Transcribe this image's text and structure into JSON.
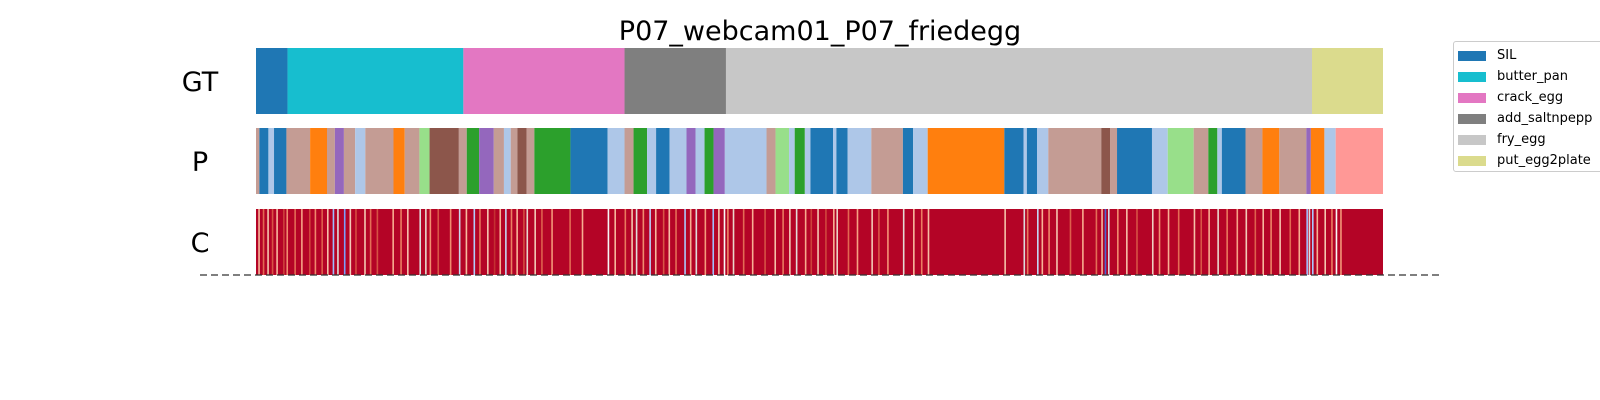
{
  "chart_data": {
    "type": "segmentation_bars",
    "title": "P07_webcam01_P07_friedegg",
    "rows": [
      {
        "label": "GT",
        "segments": [
          {
            "start": 0.0,
            "end": 0.028,
            "color": "#1f77b4"
          },
          {
            "start": 0.028,
            "end": 0.184,
            "color": "#17becf"
          },
          {
            "start": 0.184,
            "end": 0.327,
            "color": "#e377c2"
          },
          {
            "start": 0.327,
            "end": 0.417,
            "color": "#7f7f7f"
          },
          {
            "start": 0.417,
            "end": 0.937,
            "color": "#c7c7c7"
          },
          {
            "start": 0.937,
            "end": 1.0,
            "color": "#dbdb8d"
          }
        ]
      },
      {
        "label": "P",
        "segments": [
          {
            "start": 0.0,
            "end": 0.003,
            "color": "#c49c94"
          },
          {
            "start": 0.003,
            "end": 0.011,
            "color": "#1f77b4"
          },
          {
            "start": 0.011,
            "end": 0.016,
            "color": "#aec7e8"
          },
          {
            "start": 0.016,
            "end": 0.027,
            "color": "#1f77b4"
          },
          {
            "start": 0.027,
            "end": 0.048,
            "color": "#c49c94"
          },
          {
            "start": 0.048,
            "end": 0.063,
            "color": "#ff7f0e"
          },
          {
            "start": 0.063,
            "end": 0.07,
            "color": "#c49c94"
          },
          {
            "start": 0.07,
            "end": 0.078,
            "color": "#9467bd"
          },
          {
            "start": 0.078,
            "end": 0.088,
            "color": "#c49c94"
          },
          {
            "start": 0.088,
            "end": 0.097,
            "color": "#aec7e8"
          },
          {
            "start": 0.097,
            "end": 0.122,
            "color": "#c49c94"
          },
          {
            "start": 0.122,
            "end": 0.132,
            "color": "#ff7f0e"
          },
          {
            "start": 0.132,
            "end": 0.145,
            "color": "#c49c94"
          },
          {
            "start": 0.145,
            "end": 0.154,
            "color": "#98df8a"
          },
          {
            "start": 0.154,
            "end": 0.18,
            "color": "#8c564b"
          },
          {
            "start": 0.18,
            "end": 0.187,
            "color": "#c49c94"
          },
          {
            "start": 0.187,
            "end": 0.198,
            "color": "#2ca02c"
          },
          {
            "start": 0.198,
            "end": 0.211,
            "color": "#9467bd"
          },
          {
            "start": 0.211,
            "end": 0.22,
            "color": "#c49c94"
          },
          {
            "start": 0.22,
            "end": 0.226,
            "color": "#aec7e8"
          },
          {
            "start": 0.226,
            "end": 0.232,
            "color": "#c49c94"
          },
          {
            "start": 0.232,
            "end": 0.24,
            "color": "#8c564b"
          },
          {
            "start": 0.24,
            "end": 0.247,
            "color": "#c49c94"
          },
          {
            "start": 0.247,
            "end": 0.279,
            "color": "#2ca02c"
          },
          {
            "start": 0.279,
            "end": 0.312,
            "color": "#1f77b4"
          },
          {
            "start": 0.312,
            "end": 0.327,
            "color": "#aec7e8"
          },
          {
            "start": 0.327,
            "end": 0.335,
            "color": "#c49c94"
          },
          {
            "start": 0.335,
            "end": 0.347,
            "color": "#2ca02c"
          },
          {
            "start": 0.347,
            "end": 0.355,
            "color": "#aec7e8"
          },
          {
            "start": 0.355,
            "end": 0.367,
            "color": "#1f77b4"
          },
          {
            "start": 0.367,
            "end": 0.382,
            "color": "#aec7e8"
          },
          {
            "start": 0.382,
            "end": 0.39,
            "color": "#9467bd"
          },
          {
            "start": 0.39,
            "end": 0.398,
            "color": "#aec7e8"
          },
          {
            "start": 0.398,
            "end": 0.406,
            "color": "#2ca02c"
          },
          {
            "start": 0.406,
            "end": 0.416,
            "color": "#9467bd"
          },
          {
            "start": 0.416,
            "end": 0.453,
            "color": "#aec7e8"
          },
          {
            "start": 0.453,
            "end": 0.461,
            "color": "#c49c94"
          },
          {
            "start": 0.461,
            "end": 0.473,
            "color": "#98df8a"
          },
          {
            "start": 0.473,
            "end": 0.478,
            "color": "#aec7e8"
          },
          {
            "start": 0.478,
            "end": 0.487,
            "color": "#2ca02c"
          },
          {
            "start": 0.487,
            "end": 0.492,
            "color": "#aec7e8"
          },
          {
            "start": 0.492,
            "end": 0.512,
            "color": "#1f77b4"
          },
          {
            "start": 0.512,
            "end": 0.515,
            "color": "#aec7e8"
          },
          {
            "start": 0.515,
            "end": 0.525,
            "color": "#1f77b4"
          },
          {
            "start": 0.525,
            "end": 0.546,
            "color": "#aec7e8"
          },
          {
            "start": 0.546,
            "end": 0.574,
            "color": "#c49c94"
          },
          {
            "start": 0.574,
            "end": 0.583,
            "color": "#1f77b4"
          },
          {
            "start": 0.583,
            "end": 0.596,
            "color": "#aec7e8"
          },
          {
            "start": 0.596,
            "end": 0.664,
            "color": "#ff7f0e"
          },
          {
            "start": 0.664,
            "end": 0.681,
            "color": "#1f77b4"
          },
          {
            "start": 0.681,
            "end": 0.684,
            "color": "#aec7e8"
          },
          {
            "start": 0.684,
            "end": 0.693,
            "color": "#1f77b4"
          },
          {
            "start": 0.693,
            "end": 0.703,
            "color": "#aec7e8"
          },
          {
            "start": 0.703,
            "end": 0.75,
            "color": "#c49c94"
          },
          {
            "start": 0.75,
            "end": 0.758,
            "color": "#8c564b"
          },
          {
            "start": 0.758,
            "end": 0.764,
            "color": "#c49c94"
          },
          {
            "start": 0.764,
            "end": 0.795,
            "color": "#1f77b4"
          },
          {
            "start": 0.795,
            "end": 0.809,
            "color": "#aec7e8"
          },
          {
            "start": 0.809,
            "end": 0.832,
            "color": "#98df8a"
          },
          {
            "start": 0.832,
            "end": 0.845,
            "color": "#c49c94"
          },
          {
            "start": 0.845,
            "end": 0.853,
            "color": "#2ca02c"
          },
          {
            "start": 0.853,
            "end": 0.857,
            "color": "#aec7e8"
          },
          {
            "start": 0.857,
            "end": 0.878,
            "color": "#1f77b4"
          },
          {
            "start": 0.878,
            "end": 0.893,
            "color": "#c49c94"
          },
          {
            "start": 0.893,
            "end": 0.908,
            "color": "#ff7f0e"
          },
          {
            "start": 0.908,
            "end": 0.932,
            "color": "#c49c94"
          },
          {
            "start": 0.932,
            "end": 0.936,
            "color": "#9467bd"
          },
          {
            "start": 0.936,
            "end": 0.948,
            "color": "#ff7f0e"
          },
          {
            "start": 0.948,
            "end": 0.958,
            "color": "#aec7e8"
          },
          {
            "start": 0.958,
            "end": 1.0,
            "color": "#ff9896"
          }
        ]
      },
      {
        "label": "C",
        "base_color": "#b40426",
        "stripes": [
          {
            "pos": 0.002,
            "color": "#f7b89c"
          },
          {
            "pos": 0.006,
            "color": "#e26952"
          },
          {
            "pos": 0.01,
            "color": "#f4c5ad"
          },
          {
            "pos": 0.014,
            "color": "#d75445"
          },
          {
            "pos": 0.018,
            "color": "#f7b89c"
          },
          {
            "pos": 0.024,
            "color": "#cd423b"
          },
          {
            "pos": 0.027,
            "color": "#f18d6f"
          },
          {
            "pos": 0.034,
            "color": "#e36c55"
          },
          {
            "pos": 0.04,
            "color": "#f6a385"
          },
          {
            "pos": 0.047,
            "color": "#d0473d"
          },
          {
            "pos": 0.052,
            "color": "#ef886b"
          },
          {
            "pos": 0.058,
            "color": "#dd5f4b"
          },
          {
            "pos": 0.063,
            "color": "#f5c0a7"
          },
          {
            "pos": 0.068,
            "color": "#9dbdff"
          },
          {
            "pos": 0.072,
            "color": "#e0dbd8"
          },
          {
            "pos": 0.078,
            "color": "#7b9ff9"
          },
          {
            "pos": 0.083,
            "color": "#f2cbb7"
          },
          {
            "pos": 0.088,
            "color": "#d44e41"
          },
          {
            "pos": 0.096,
            "color": "#f3c7b1"
          },
          {
            "pos": 0.101,
            "color": "#e46e56"
          },
          {
            "pos": 0.107,
            "color": "#d65244"
          },
          {
            "pos": 0.121,
            "color": "#f7ac8e"
          },
          {
            "pos": 0.128,
            "color": "#eb7d62"
          },
          {
            "pos": 0.134,
            "color": "#f5c2aa"
          },
          {
            "pos": 0.145,
            "color": "#dcdddd"
          },
          {
            "pos": 0.15,
            "color": "#e9d5cb"
          },
          {
            "pos": 0.154,
            "color": "#f29072"
          },
          {
            "pos": 0.161,
            "color": "#d85646"
          },
          {
            "pos": 0.172,
            "color": "#f08b6e"
          },
          {
            "pos": 0.18,
            "color": "#cad8ef"
          },
          {
            "pos": 0.186,
            "color": "#f7ba9f"
          },
          {
            "pos": 0.193,
            "color": "#b2ccfb"
          },
          {
            "pos": 0.198,
            "color": "#e7745b"
          },
          {
            "pos": 0.205,
            "color": "#f4c6af"
          },
          {
            "pos": 0.211,
            "color": "#c43032"
          },
          {
            "pos": 0.216,
            "color": "#f7b194"
          },
          {
            "pos": 0.221,
            "color": "#c5d6f2"
          },
          {
            "pos": 0.226,
            "color": "#ec7f63"
          },
          {
            "pos": 0.231,
            "color": "#f7b497"
          },
          {
            "pos": 0.237,
            "color": "#d24b40"
          },
          {
            "pos": 0.24,
            "color": "#e8d6cc"
          },
          {
            "pos": 0.247,
            "color": "#f2cab5"
          },
          {
            "pos": 0.253,
            "color": "#de614d"
          },
          {
            "pos": 0.262,
            "color": "#f39778"
          },
          {
            "pos": 0.278,
            "color": "#e26952"
          },
          {
            "pos": 0.289,
            "color": "#f7af91"
          },
          {
            "pos": 0.312,
            "color": "#f5f5f5"
          },
          {
            "pos": 0.318,
            "color": "#f7b89c"
          },
          {
            "pos": 0.327,
            "color": "#e9785d"
          },
          {
            "pos": 0.333,
            "color": "#f4c5ad"
          },
          {
            "pos": 0.337,
            "color": "#dfdbd9"
          },
          {
            "pos": 0.343,
            "color": "#f08b6e"
          },
          {
            "pos": 0.349,
            "color": "#b9d0f9"
          },
          {
            "pos": 0.354,
            "color": "#f7b89c"
          },
          {
            "pos": 0.361,
            "color": "#d85646"
          },
          {
            "pos": 0.366,
            "color": "#f6bfa6"
          },
          {
            "pos": 0.372,
            "color": "#e46e56"
          },
          {
            "pos": 0.38,
            "color": "#aac7fd"
          },
          {
            "pos": 0.385,
            "color": "#f7ad90"
          },
          {
            "pos": 0.39,
            "color": "#dedcdb"
          },
          {
            "pos": 0.398,
            "color": "#f49a7b"
          },
          {
            "pos": 0.405,
            "color": "#9fbfff"
          },
          {
            "pos": 0.41,
            "color": "#f5c4ac"
          },
          {
            "pos": 0.415,
            "color": "#f7f7f7"
          },
          {
            "pos": 0.418,
            "color": "#ee8468"
          },
          {
            "pos": 0.423,
            "color": "#ead5c9"
          },
          {
            "pos": 0.432,
            "color": "#e36c55"
          },
          {
            "pos": 0.44,
            "color": "#f7b093"
          },
          {
            "pos": 0.451,
            "color": "#d65244"
          },
          {
            "pos": 0.46,
            "color": "#f5c0a7"
          },
          {
            "pos": 0.467,
            "color": "#e97a5f"
          },
          {
            "pos": 0.473,
            "color": "#f2cbb7"
          },
          {
            "pos": 0.479,
            "color": "#e0dbd8"
          },
          {
            "pos": 0.487,
            "color": "#f7a98b"
          },
          {
            "pos": 0.492,
            "color": "#cd423b"
          },
          {
            "pos": 0.498,
            "color": "#f4c6af"
          },
          {
            "pos": 0.505,
            "color": "#d0473d"
          },
          {
            "pos": 0.512,
            "color": "#f7b194"
          },
          {
            "pos": 0.515,
            "color": "#ebd3c6"
          },
          {
            "pos": 0.525,
            "color": "#e26952"
          },
          {
            "pos": 0.533,
            "color": "#f6a283"
          },
          {
            "pos": 0.546,
            "color": "#f2cab5"
          },
          {
            "pos": 0.552,
            "color": "#d95847"
          },
          {
            "pos": 0.56,
            "color": "#f39475"
          },
          {
            "pos": 0.574,
            "color": "#e4d9d2"
          },
          {
            "pos": 0.583,
            "color": "#f7b89c"
          },
          {
            "pos": 0.59,
            "color": "#eb7d62"
          },
          {
            "pos": 0.596,
            "color": "#f6bda2"
          },
          {
            "pos": 0.664,
            "color": "#f5c2aa"
          },
          {
            "pos": 0.681,
            "color": "#dcdddd"
          },
          {
            "pos": 0.684,
            "color": "#e9785d"
          },
          {
            "pos": 0.693,
            "color": "#c3d5f4"
          },
          {
            "pos": 0.697,
            "color": "#f7b497"
          },
          {
            "pos": 0.703,
            "color": "#ef886b"
          },
          {
            "pos": 0.71,
            "color": "#f4c5ad"
          },
          {
            "pos": 0.722,
            "color": "#dd5f4b"
          },
          {
            "pos": 0.733,
            "color": "#f7ac8e"
          },
          {
            "pos": 0.745,
            "color": "#e46e56"
          },
          {
            "pos": 0.75,
            "color": "#f7b89c"
          },
          {
            "pos": 0.753,
            "color": "#4a63d3"
          },
          {
            "pos": 0.756,
            "color": "#d7dce3"
          },
          {
            "pos": 0.764,
            "color": "#f18d6f"
          },
          {
            "pos": 0.772,
            "color": "#f6bfa6"
          },
          {
            "pos": 0.781,
            "color": "#d65244"
          },
          {
            "pos": 0.795,
            "color": "#eed0c0"
          },
          {
            "pos": 0.801,
            "color": "#f29072"
          },
          {
            "pos": 0.809,
            "color": "#f7b093"
          },
          {
            "pos": 0.818,
            "color": "#e36c55"
          },
          {
            "pos": 0.832,
            "color": "#f5c0a7"
          },
          {
            "pos": 0.838,
            "color": "#d85646"
          },
          {
            "pos": 0.845,
            "color": "#f7af91"
          },
          {
            "pos": 0.853,
            "color": "#e8d6cc"
          },
          {
            "pos": 0.861,
            "color": "#e9785d"
          },
          {
            "pos": 0.87,
            "color": "#f6a385"
          },
          {
            "pos": 0.878,
            "color": "#f2cbb7"
          },
          {
            "pos": 0.886,
            "color": "#de614d"
          },
          {
            "pos": 0.893,
            "color": "#f7b89c"
          },
          {
            "pos": 0.9,
            "color": "#ee8468"
          },
          {
            "pos": 0.908,
            "color": "#f5c4ac"
          },
          {
            "pos": 0.917,
            "color": "#e26952"
          },
          {
            "pos": 0.925,
            "color": "#f7ad90"
          },
          {
            "pos": 0.932,
            "color": "#9fbfff"
          },
          {
            "pos": 0.934,
            "color": "#dedcdb"
          },
          {
            "pos": 0.937,
            "color": "#aac7fd"
          },
          {
            "pos": 0.941,
            "color": "#f7b194"
          },
          {
            "pos": 0.948,
            "color": "#f4c6af"
          },
          {
            "pos": 0.954,
            "color": "#eb7d62"
          },
          {
            "pos": 0.958,
            "color": "#f7f7f7"
          },
          {
            "pos": 0.962,
            "color": "#f39778"
          }
        ]
      }
    ],
    "legend": {
      "placement": "outside-right",
      "entries": [
        {
          "label": "SIL",
          "color": "#1f77b4"
        },
        {
          "label": "butter_pan",
          "color": "#17becf"
        },
        {
          "label": "crack_egg",
          "color": "#e377c2"
        },
        {
          "label": "add_saltnpepp",
          "color": "#7f7f7f"
        },
        {
          "label": "fry_egg",
          "color": "#c7c7c7"
        },
        {
          "label": "put_egg2plate",
          "color": "#dbdb8d"
        }
      ]
    }
  }
}
